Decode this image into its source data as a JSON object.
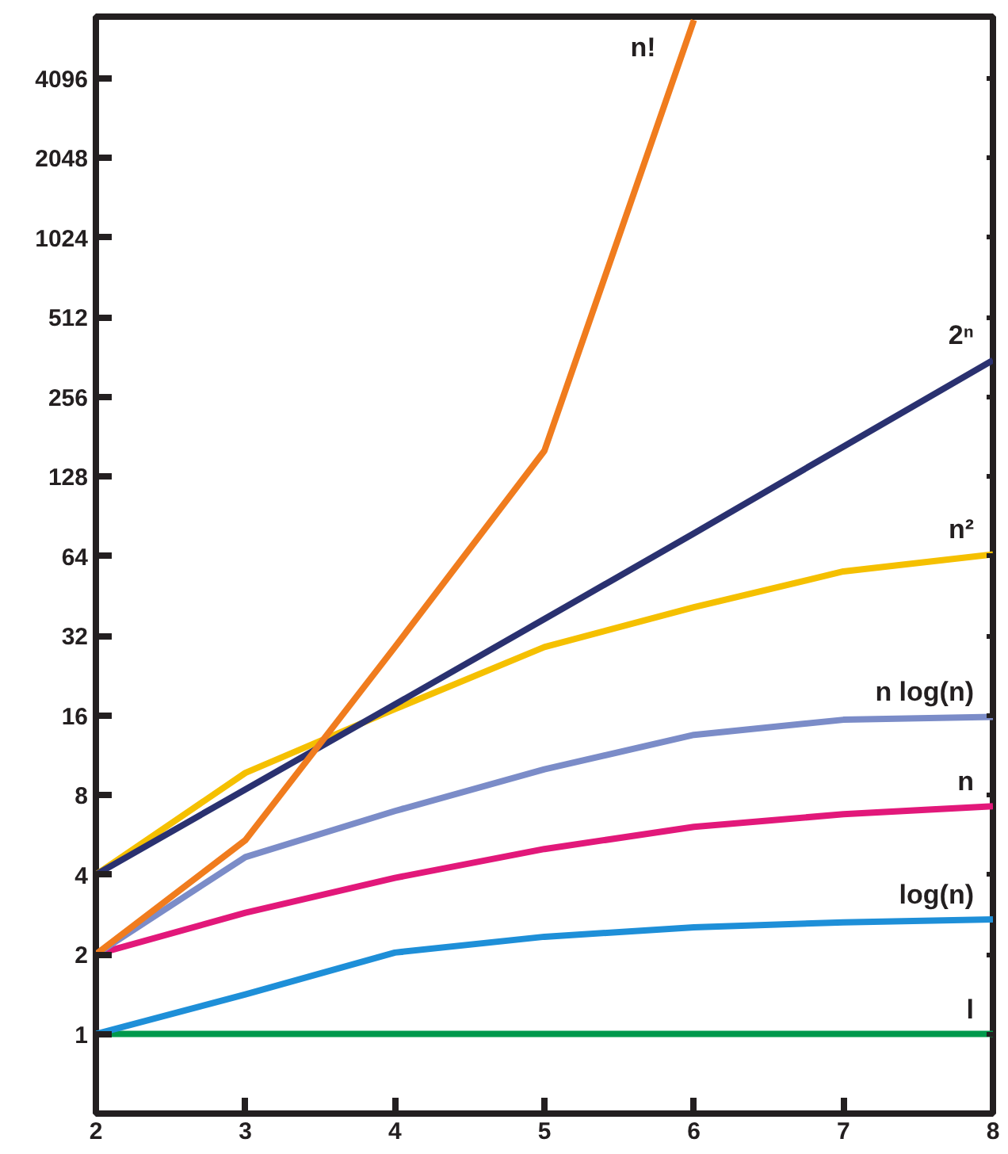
{
  "chart_data": {
    "type": "line",
    "x": [
      2,
      3,
      4,
      5,
      6,
      7,
      8
    ],
    "series": [
      {
        "name": "l",
        "color": "#00994c",
        "values": [
          1,
          1,
          1,
          1,
          1,
          1,
          1
        ]
      },
      {
        "name": "log(n)",
        "color": "#1e8fd8",
        "values": [
          1,
          1.41,
          2.03,
          2.33,
          2.53,
          2.64,
          2.71
        ]
      },
      {
        "name": "n",
        "color": "#e2187a",
        "values": [
          2,
          2.87,
          3.89,
          5.0,
          6.06,
          6.77,
          7.26
        ]
      },
      {
        "name": "n log(n)",
        "color": "#7b8cc8",
        "values": [
          2,
          4.66,
          6.96,
          10,
          13.5,
          15.4,
          15.8
        ]
      },
      {
        "name": "n²",
        "color": "#f5c000",
        "values": [
          4,
          9.7,
          16.9,
          29,
          41,
          56,
          65
        ]
      },
      {
        "name": "2ⁿ",
        "color": "#2a3170",
        "values": [
          4,
          8.4,
          17.6,
          37,
          78,
          166,
          352
        ]
      },
      {
        "name": "n!",
        "color": "#f07c1e",
        "x": [
          2,
          3,
          4,
          5,
          5.5,
          6
        ],
        "values": [
          2,
          5.4,
          29,
          160,
          1040,
          6800
        ]
      }
    ],
    "log": "y",
    "xlim": [
      2,
      8
    ],
    "ylim": [
      0.5,
      7000
    ],
    "xticks": [
      2,
      3,
      4,
      5,
      6,
      7,
      8
    ],
    "yticks": [
      1,
      2,
      4,
      8,
      16,
      32,
      64,
      128,
      256,
      512,
      1024,
      2048,
      4096
    ],
    "grid": false,
    "marker": "none",
    "line_style": "solid"
  }
}
